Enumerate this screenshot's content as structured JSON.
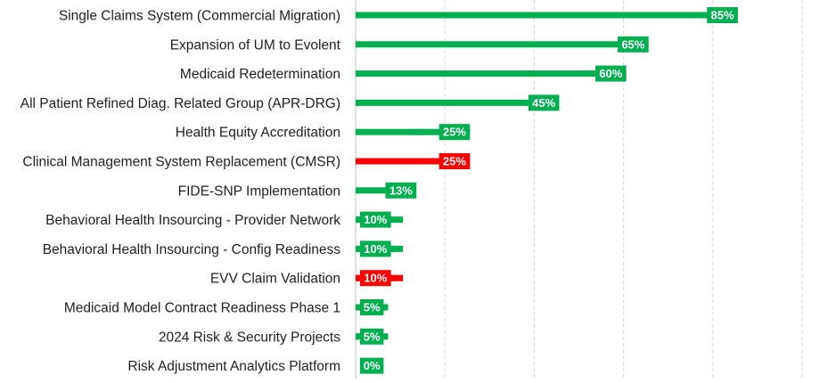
{
  "chart_data": {
    "type": "bar",
    "orientation": "horizontal",
    "categories": [
      "Single Claims System (Commercial Migration)",
      "Expansion of UM to Evolent",
      "Medicaid Redetermination",
      "All Patient Refined Diag. Related Group (APR-DRG)",
      "Health Equity Accreditation",
      "Clinical Management System Replacement (CMSR)",
      "FIDE-SNP Implementation",
      "Behavioral Health Insourcing - Provider Network",
      "Behavioral Health Insourcing - Config Readiness",
      "EVV Claim Validation",
      "Medicaid Model Contract Readiness Phase 1",
      "2024 Risk & Security Projects",
      "Risk Adjustment Analytics Platform"
    ],
    "values": [
      85,
      65,
      60,
      45,
      25,
      25,
      13,
      10,
      10,
      10,
      5,
      5,
      0
    ],
    "data_labels": [
      "85%",
      "65%",
      "60%",
      "45%",
      "25%",
      "25%",
      "13%",
      "10%",
      "10%",
      "10%",
      "5%",
      "5%",
      "0%"
    ],
    "status": [
      "on-track",
      "on-track",
      "on-track",
      "on-track",
      "on-track",
      "at-risk",
      "on-track",
      "on-track",
      "on-track",
      "at-risk",
      "on-track",
      "on-track",
      "on-track"
    ],
    "colors": {
      "on-track": "#00b050",
      "at-risk": "#ff0000",
      "gridline": "#d9d9d9",
      "axis": "#bfbfbf",
      "label_text": "#ffffff",
      "category_text": "#1f1f1f"
    },
    "xlim": [
      0,
      100
    ],
    "gridlines": [
      0,
      20,
      40,
      60,
      80,
      100
    ],
    "grid": "vertical-dashed",
    "title": "",
    "xlabel": "",
    "ylabel": "",
    "legend": "none"
  }
}
